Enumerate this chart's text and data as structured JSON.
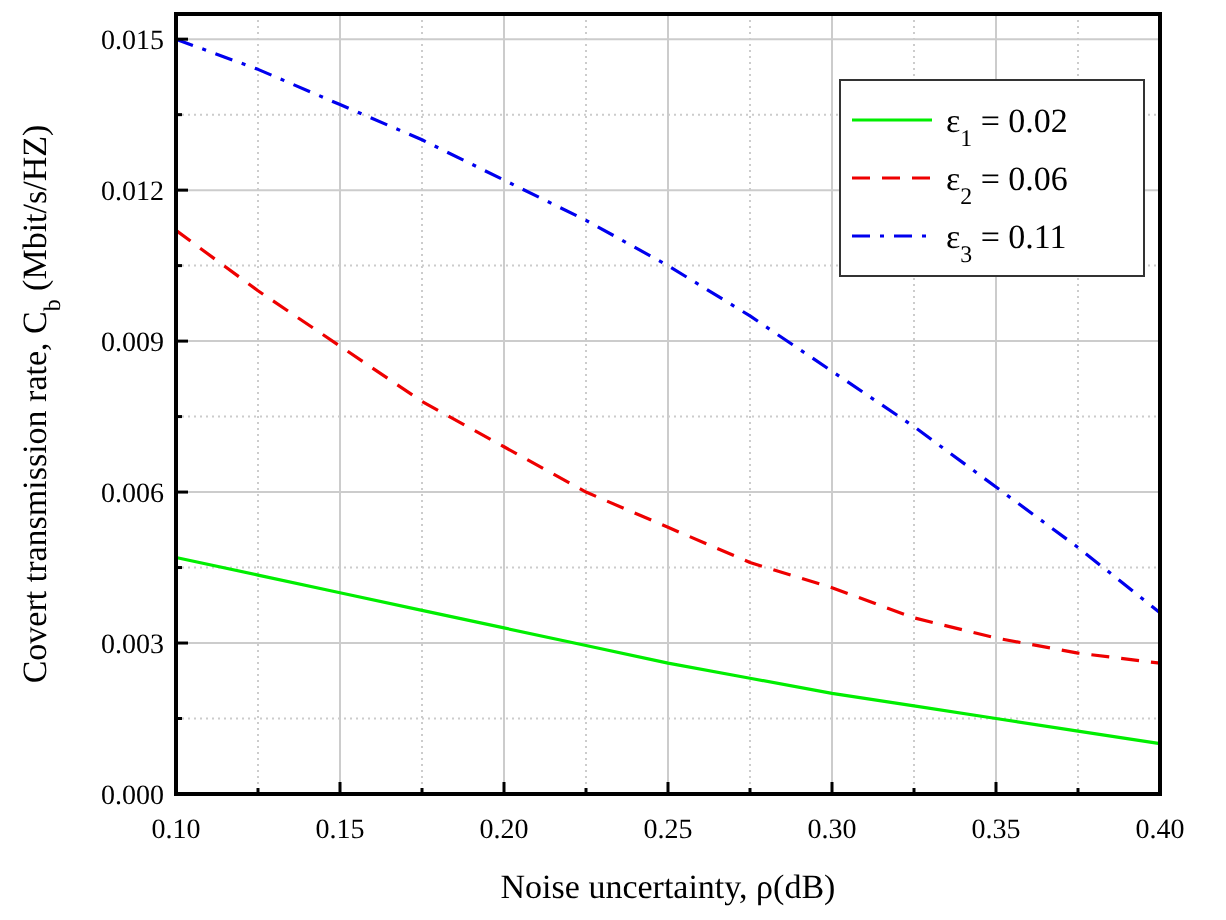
{
  "chart_data": {
    "type": "line",
    "xlabel": "Noise uncertainty, ρ(dB)",
    "ylabel": "Covert transmission rate, C$_{b}$ (Mbit/s/HZ)",
    "x": [
      0.1,
      0.125,
      0.15,
      0.175,
      0.2,
      0.225,
      0.25,
      0.275,
      0.3,
      0.325,
      0.35,
      0.375,
      0.4
    ],
    "series": [
      {
        "name": "ε$_{1}$ = 0.02",
        "color": "#00ee00",
        "line_style": "solid",
        "values": [
          0.0047,
          0.00435,
          0.004,
          0.00365,
          0.0033,
          0.00295,
          0.0026,
          0.0023,
          0.002,
          0.00175,
          0.0015,
          0.00125,
          0.001
        ]
      },
      {
        "name": "ε$_{2}$ = 0.06",
        "color": "#ee0000",
        "line_style": "dashed",
        "values": [
          0.0112,
          0.01,
          0.0089,
          0.0078,
          0.0069,
          0.006,
          0.0053,
          0.0046,
          0.0041,
          0.0035,
          0.0031,
          0.0028,
          0.0026
        ]
      },
      {
        "name": "ε$_{3}$ = 0.11",
        "color": "#0000ee",
        "line_style": "dashdot",
        "values": [
          0.015,
          0.0144,
          0.0137,
          0.013,
          0.0122,
          0.0114,
          0.0105,
          0.0095,
          0.0084,
          0.0073,
          0.0061,
          0.0049,
          0.0036
        ]
      }
    ],
    "xlim": [
      0.1,
      0.4
    ],
    "xticks": [
      {
        "value": 0.1,
        "label": "0.10"
      },
      {
        "value": 0.15,
        "label": "0.15"
      },
      {
        "value": 0.2,
        "label": "0.20"
      },
      {
        "value": 0.25,
        "label": "0.25"
      },
      {
        "value": 0.3,
        "label": "0.30"
      },
      {
        "value": 0.35,
        "label": "0.35"
      },
      {
        "value": 0.4,
        "label": "0.40"
      }
    ],
    "ylim": [
      0,
      0.0155
    ],
    "yticks": [
      {
        "value": 0,
        "label": "0.000"
      },
      {
        "value": 0.003,
        "label": "0.003"
      },
      {
        "value": 0.006,
        "label": "0.006"
      },
      {
        "value": 0.009,
        "label": "0.009"
      },
      {
        "value": 0.012,
        "label": "0.012"
      },
      {
        "value": 0.015,
        "label": "0.015"
      }
    ],
    "grid": true,
    "legend": "top right",
    "marker": "none"
  }
}
